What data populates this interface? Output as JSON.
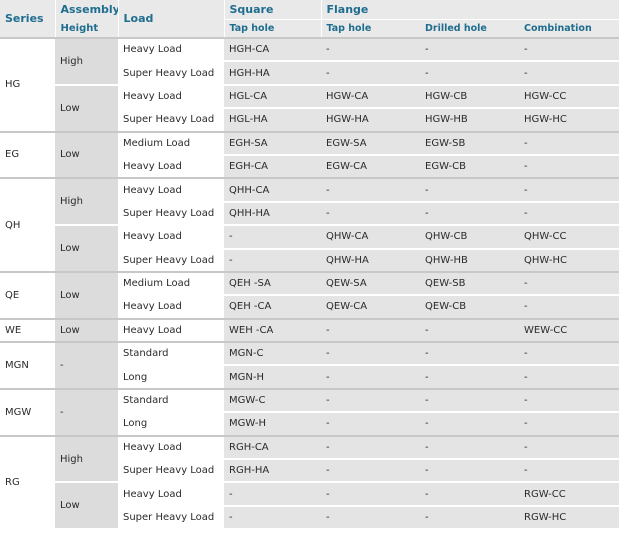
{
  "header": {
    "series": "Series",
    "assembly_height": [
      "Assembly",
      "Height"
    ],
    "load": "Load",
    "square": "Square",
    "flange": "Flange",
    "tap_hole_square": "Tap hole",
    "tap_hole_flange": "Tap hole",
    "drilled_hole": "Drilled hole",
    "combination": "Combination"
  },
  "rows": [
    {
      "series": "HG",
      "height": "High",
      "load": "Heavy Load",
      "square": "HGH-CA",
      "tap": "-",
      "drilled": "-",
      "combo": "-"
    },
    {
      "series": "HG",
      "height": "High",
      "load": "Super Heavy Load",
      "square": "HGH-HA",
      "tap": "-",
      "drilled": "-",
      "combo": "-"
    },
    {
      "series": "HG",
      "height": "Low",
      "load": "Heavy Load",
      "square": "HGL-CA",
      "tap": "HGW-CA",
      "drilled": "HGW-CB",
      "combo": "HGW-CC"
    },
    {
      "series": "HG",
      "height": "Low",
      "load": "Super Heavy Load",
      "square": "HGL-HA",
      "tap": "HGW-HA",
      "drilled": "HGW-HB",
      "combo": "HGW-HC"
    },
    {
      "series": "EG",
      "height": "Low",
      "load": "Medium Load",
      "square": "EGH-SA",
      "tap": "EGW-SA",
      "drilled": "EGW-SB",
      "combo": "-"
    },
    {
      "series": "EG",
      "height": "Low",
      "load": "Heavy Load",
      "square": "EGH-CA",
      "tap": "EGW-CA",
      "drilled": "EGW-CB",
      "combo": "-"
    },
    {
      "series": "QH",
      "height": "High",
      "load": "Heavy Load",
      "square": "QHH-CA",
      "tap": "-",
      "drilled": "-",
      "combo": "-"
    },
    {
      "series": "QH",
      "height": "High",
      "load": "Super Heavy Load",
      "square": "QHH-HA",
      "tap": "-",
      "drilled": "-",
      "combo": "-"
    },
    {
      "series": "QH",
      "height": "Low",
      "load": "Heavy Load",
      "square": "-",
      "tap": "QHW-CA",
      "drilled": "QHW-CB",
      "combo": "QHW-CC"
    },
    {
      "series": "QH",
      "height": "Low",
      "load": "Super Heavy Load",
      "square": "-",
      "tap": "QHW-HA",
      "drilled": "QHW-HB",
      "combo": "QHW-HC"
    },
    {
      "series": "QE",
      "height": "Low",
      "load": "Medium Load",
      "square": "QEH -SA",
      "tap": "QEW-SA",
      "drilled": "QEW-SB",
      "combo": "-"
    },
    {
      "series": "QE",
      "height": "Low",
      "load": "Heavy Load",
      "square": "QEH -CA",
      "tap": "QEW-CA",
      "drilled": "QEW-CB",
      "combo": "-"
    },
    {
      "series": "WE",
      "height": "Low",
      "load": "Heavy Load",
      "square": "WEH -CA",
      "tap": "-",
      "drilled": "-",
      "combo": "WEW-CC"
    },
    {
      "series": "MGN",
      "height": "-",
      "load": "Standard",
      "square": "MGN-C",
      "tap": "-",
      "drilled": "-",
      "combo": "-"
    },
    {
      "series": "MGN",
      "height": "-",
      "load": "Long",
      "square": "MGN-H",
      "tap": "-",
      "drilled": "-",
      "combo": "-"
    },
    {
      "series": "MGW",
      "height": "-",
      "load": "Standard",
      "square": "MGW-C",
      "tap": "-",
      "drilled": "-",
      "combo": "-"
    },
    {
      "series": "MGW",
      "height": "-",
      "load": "Long",
      "square": "MGW-H",
      "tap": "-",
      "drilled": "-",
      "combo": "-"
    },
    {
      "series": "RG",
      "height": "High",
      "load": "Heavy Load",
      "square": "RGH-CA",
      "tap": "-",
      "drilled": "-",
      "combo": "-"
    },
    {
      "series": "RG",
      "height": "High",
      "load": "Super Heavy Load",
      "square": "RGH-HA",
      "tap": "-",
      "drilled": "-",
      "combo": "-"
    },
    {
      "series": "RG",
      "height": "Low",
      "load": "Heavy Load",
      "square": "-",
      "tap": "-",
      "drilled": "-",
      "combo": "RGW-CC"
    },
    {
      "series": "RG",
      "height": "Low",
      "load": "Super Heavy Load",
      "square": "-",
      "tap": "-",
      "drilled": "-",
      "combo": "RGW-HC"
    }
  ]
}
